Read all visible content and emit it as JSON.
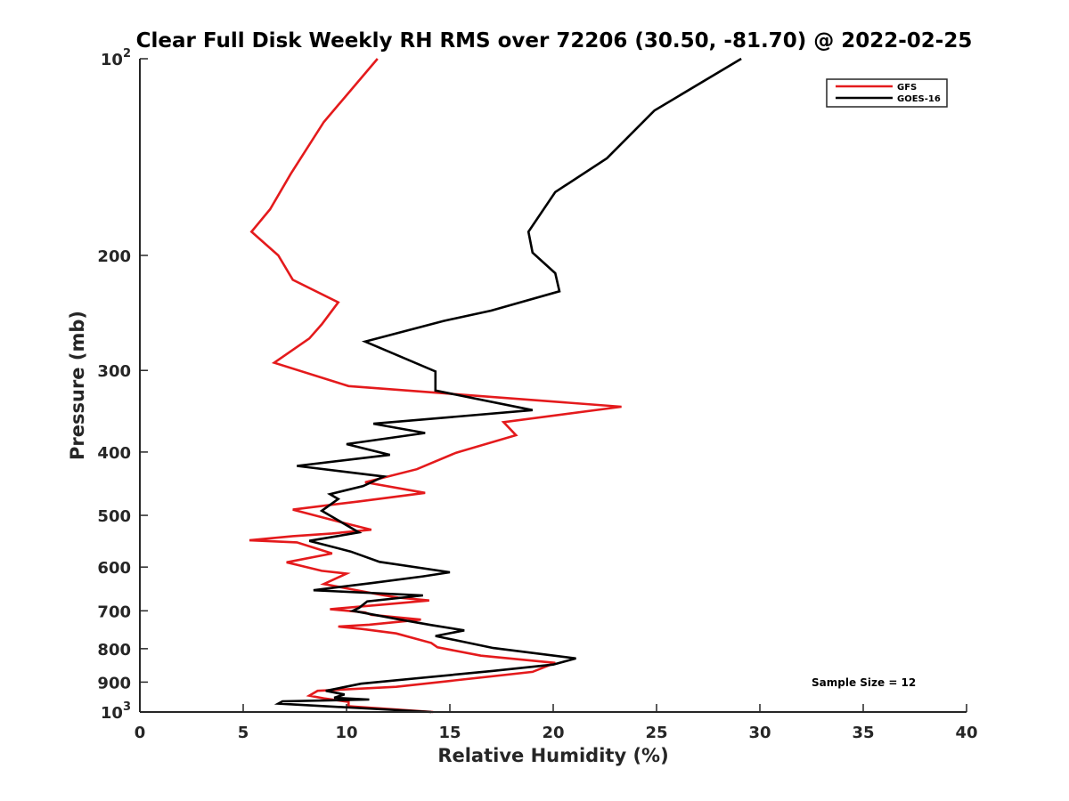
{
  "chart_data": {
    "type": "line",
    "title": "Clear Full Disk Weekly RH RMS over 72206 (30.50, -81.70) @ 2022-02-25",
    "xlabel": "Relative Humidity (%)",
    "ylabel": "Pressure (mb)",
    "xlim": [
      0,
      40
    ],
    "ylim": [
      100,
      1000
    ],
    "y_scale": "log",
    "y_reversed": true,
    "grid": false,
    "legend_position": "top-right",
    "x_ticks": [
      "0",
      "5",
      "10",
      "15",
      "20",
      "25",
      "30",
      "35",
      "40"
    ],
    "y_ticks": [
      {
        "value": 100,
        "base": "10",
        "exp": "2"
      },
      {
        "value": 200,
        "label": "200"
      },
      {
        "value": 300,
        "label": "300"
      },
      {
        "value": 400,
        "label": "400"
      },
      {
        "value": 500,
        "label": "500"
      },
      {
        "value": 600,
        "label": "600"
      },
      {
        "value": 700,
        "label": "700"
      },
      {
        "value": 800,
        "label": "800"
      },
      {
        "value": 900,
        "label": "900"
      },
      {
        "value": 1000,
        "base": "10",
        "exp": "3"
      }
    ],
    "annotation": "Sample Size = 12",
    "series": [
      {
        "name": "GFS",
        "color": "#e41a1c",
        "points": [
          [
            11.5,
            100
          ],
          [
            8.9,
            125
          ],
          [
            7.3,
            150
          ],
          [
            6.3,
            170
          ],
          [
            5.4,
            184
          ],
          [
            6.7,
            200
          ],
          [
            7.4,
            218
          ],
          [
            9.6,
            236
          ],
          [
            8.8,
            255
          ],
          [
            8.2,
            268
          ],
          [
            6.5,
            292
          ],
          [
            10.1,
            317
          ],
          [
            23.3,
            341
          ],
          [
            17.6,
            360
          ],
          [
            18.2,
            377
          ],
          [
            15.3,
            401
          ],
          [
            13.4,
            425
          ],
          [
            10.9,
            445
          ],
          [
            13.8,
            462
          ],
          [
            10.6,
            476
          ],
          [
            7.4,
            490
          ],
          [
            9.5,
            510
          ],
          [
            11.2,
            526
          ],
          [
            9.3,
            533
          ],
          [
            7.4,
            538
          ],
          [
            5.3,
            546
          ],
          [
            7.6,
            550
          ],
          [
            9.3,
            572
          ],
          [
            7.1,
            590
          ],
          [
            8.8,
            608
          ],
          [
            10.0,
            614
          ],
          [
            8.9,
            637
          ],
          [
            11.7,
            662
          ],
          [
            12.5,
            668
          ],
          [
            14.0,
            675
          ],
          [
            11.7,
            685
          ],
          [
            9.2,
            696
          ],
          [
            10.9,
            704
          ],
          [
            11.2,
            710
          ],
          [
            13.6,
            722
          ],
          [
            11.1,
            735
          ],
          [
            9.6,
            740
          ],
          [
            10.7,
            746
          ],
          [
            12.4,
            758
          ],
          [
            14.1,
            784
          ],
          [
            14.4,
            796
          ],
          [
            16.5,
            820
          ],
          [
            20.1,
            841
          ],
          [
            19.0,
            868
          ],
          [
            12.4,
            915
          ],
          [
            8.6,
            928
          ],
          [
            8.2,
            944
          ],
          [
            8.9,
            953
          ],
          [
            10.1,
            965
          ],
          [
            10.1,
            980
          ],
          [
            14.2,
            1000
          ]
        ]
      },
      {
        "name": "GOES-16",
        "color": "#000000",
        "points": [
          [
            29.1,
            100
          ],
          [
            24.9,
            120
          ],
          [
            22.6,
            142
          ],
          [
            20.1,
            160
          ],
          [
            18.8,
            184
          ],
          [
            19.0,
            198
          ],
          [
            20.1,
            213
          ],
          [
            20.3,
            227
          ],
          [
            17.0,
            243
          ],
          [
            14.7,
            252
          ],
          [
            10.9,
            271
          ],
          [
            14.3,
            301
          ],
          [
            14.3,
            322
          ],
          [
            19.0,
            345
          ],
          [
            11.3,
            362
          ],
          [
            13.8,
            374
          ],
          [
            10.0,
            389
          ],
          [
            12.1,
            404
          ],
          [
            7.6,
            420
          ],
          [
            11.8,
            436
          ],
          [
            10.8,
            451
          ],
          [
            9.2,
            464
          ],
          [
            9.6,
            472
          ],
          [
            8.8,
            492
          ],
          [
            10.6,
            531
          ],
          [
            8.2,
            547
          ],
          [
            10.2,
            568
          ],
          [
            11.6,
            589
          ],
          [
            15.0,
            611
          ],
          [
            13.7,
            620
          ],
          [
            11.2,
            635
          ],
          [
            8.4,
            651
          ],
          [
            13.7,
            663
          ],
          [
            11.0,
            677
          ],
          [
            10.6,
            693
          ],
          [
            10.3,
            700
          ],
          [
            12.6,
            722
          ],
          [
            14.1,
            736
          ],
          [
            15.7,
            750
          ],
          [
            14.3,
            765
          ],
          [
            17.1,
            798
          ],
          [
            21.1,
            828
          ],
          [
            20.0,
            846
          ],
          [
            17.1,
            865
          ],
          [
            10.7,
            905
          ],
          [
            9.0,
            928
          ],
          [
            9.9,
            940
          ],
          [
            9.4,
            951
          ],
          [
            11.1,
            957
          ],
          [
            6.9,
            963
          ],
          [
            6.7,
            971
          ],
          [
            14.1,
            1000
          ]
        ]
      }
    ]
  }
}
